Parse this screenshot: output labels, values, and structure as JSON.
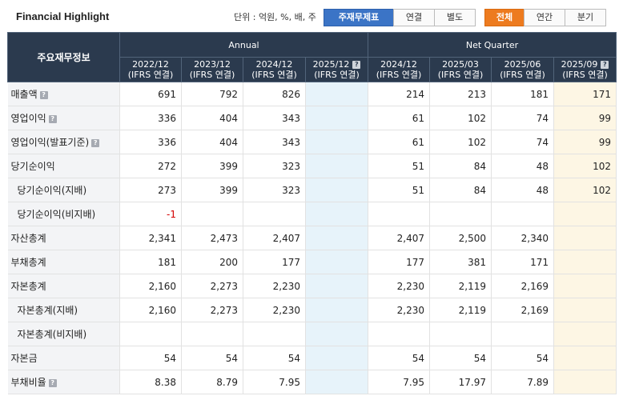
{
  "title": "Financial Highlight",
  "unit_text": "단위 : 억원, %, 배, 주",
  "report_buttons": [
    {
      "label": "주재무제표",
      "active": true
    },
    {
      "label": "연결",
      "active": false
    },
    {
      "label": "별도",
      "active": false
    }
  ],
  "period_buttons": [
    {
      "label": "전체",
      "active": true
    },
    {
      "label": "연간",
      "active": false
    },
    {
      "label": "분기",
      "active": false
    }
  ],
  "header": {
    "corner": "주요재무정보",
    "annual": "Annual",
    "quarter": "Net Quarter",
    "columns": [
      {
        "period": "2022/12",
        "basis": "(IFRS 연결)"
      },
      {
        "period": "2023/12",
        "basis": "(IFRS 연결)"
      },
      {
        "period": "2024/12",
        "basis": "(IFRS 연결)"
      },
      {
        "period": "2025/12",
        "basis": "(IFRS 연결)",
        "help": true
      },
      {
        "period": "2024/12",
        "basis": "(IFRS 연결)"
      },
      {
        "period": "2025/03",
        "basis": "(IFRS 연결)"
      },
      {
        "period": "2025/06",
        "basis": "(IFRS 연결)"
      },
      {
        "period": "2025/09",
        "basis": "(IFRS 연결)",
        "help": true
      }
    ]
  },
  "rows": [
    {
      "label": "매출액",
      "help": true,
      "values": [
        "691",
        "792",
        "826",
        "",
        "214",
        "213",
        "181",
        "171"
      ]
    },
    {
      "label": "영업이익",
      "help": true,
      "values": [
        "336",
        "404",
        "343",
        "",
        "61",
        "102",
        "74",
        "99"
      ]
    },
    {
      "label": "영업이익(발표기준)",
      "help": true,
      "values": [
        "336",
        "404",
        "343",
        "",
        "61",
        "102",
        "74",
        "99"
      ]
    },
    {
      "label": "당기순이익",
      "values": [
        "272",
        "399",
        "323",
        "",
        "51",
        "84",
        "48",
        "102"
      ]
    },
    {
      "label": "당기순이익(지배)",
      "sub": true,
      "values": [
        "273",
        "399",
        "323",
        "",
        "51",
        "84",
        "48",
        "102"
      ]
    },
    {
      "label": "당기순이익(비지배)",
      "sub": true,
      "values": [
        "-1",
        "",
        "",
        "",
        "",
        "",
        "",
        ""
      ]
    },
    {
      "label": "자산총계",
      "values": [
        "2,341",
        "2,473",
        "2,407",
        "",
        "2,407",
        "2,500",
        "2,340",
        ""
      ]
    },
    {
      "label": "부채총계",
      "values": [
        "181",
        "200",
        "177",
        "",
        "177",
        "381",
        "171",
        ""
      ]
    },
    {
      "label": "자본총계",
      "values": [
        "2,160",
        "2,273",
        "2,230",
        "",
        "2,230",
        "2,119",
        "2,169",
        ""
      ]
    },
    {
      "label": "자본총계(지배)",
      "sub": true,
      "values": [
        "2,160",
        "2,273",
        "2,230",
        "",
        "2,230",
        "2,119",
        "2,169",
        ""
      ]
    },
    {
      "label": "자본총계(비지배)",
      "sub": true,
      "values": [
        "",
        "",
        "",
        "",
        "",
        "",
        "",
        ""
      ]
    },
    {
      "label": "자본금",
      "values": [
        "54",
        "54",
        "54",
        "",
        "54",
        "54",
        "54",
        ""
      ]
    },
    {
      "label": "부채비율",
      "help": true,
      "values": [
        "8.38",
        "8.79",
        "7.95",
        "",
        "7.95",
        "17.97",
        "7.89",
        ""
      ]
    }
  ]
}
